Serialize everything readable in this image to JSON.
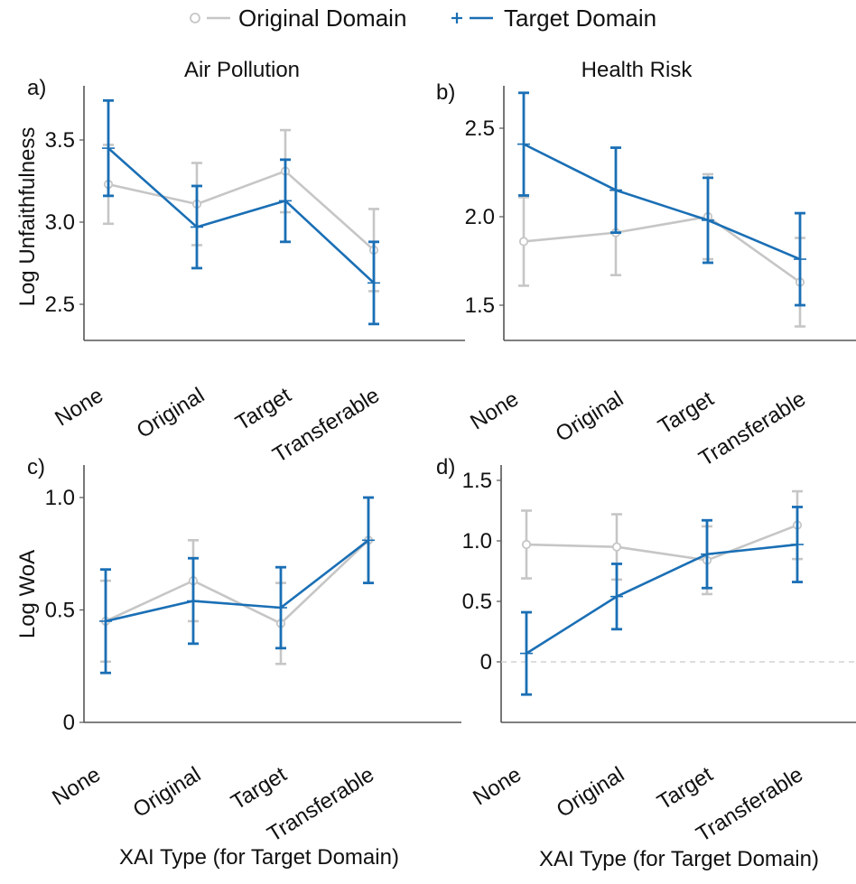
{
  "legend": {
    "original_label": "Original Domain",
    "target_label": "Target Domain",
    "original_color": "#c6c6c6",
    "target_color": "#1a6fb5"
  },
  "chart_data": [
    {
      "type": "line",
      "panel": "a)",
      "title": "Air Pollution",
      "ylabel": "Log Unfaithfulness",
      "xlabel": "",
      "categories": [
        "None",
        "Original",
        "Target",
        "Transferable"
      ],
      "ylim": [
        2.3,
        3.85
      ],
      "yticks": [
        2.5,
        3.0,
        3.5
      ],
      "yticklabels": [
        "2.5",
        "3.0",
        "3.5"
      ],
      "baseline": null,
      "series": [
        {
          "name": "Original Domain",
          "values": [
            3.23,
            3.11,
            3.31,
            2.83
          ],
          "errors": [
            0.24,
            0.25,
            0.25,
            0.25
          ]
        },
        {
          "name": "Target Domain",
          "values": [
            3.45,
            2.97,
            3.13,
            2.63
          ],
          "errors": [
            0.29,
            0.25,
            0.25,
            0.25
          ]
        }
      ]
    },
    {
      "type": "line",
      "panel": "b)",
      "title": "Health Risk",
      "ylabel": "",
      "xlabel": "",
      "categories": [
        "None",
        "Original",
        "Target",
        "Transferable"
      ],
      "ylim": [
        1.3,
        2.78
      ],
      "yticks": [
        1.5,
        2.0,
        2.5
      ],
      "yticklabels": [
        "1.5",
        "2.0",
        "2.5"
      ],
      "baseline": null,
      "series": [
        {
          "name": "Original Domain",
          "values": [
            1.86,
            1.91,
            2.0,
            1.63
          ],
          "errors": [
            0.25,
            0.24,
            0.24,
            0.25
          ]
        },
        {
          "name": "Target Domain",
          "values": [
            2.41,
            2.15,
            1.98,
            1.76
          ],
          "errors": [
            0.29,
            0.24,
            0.24,
            0.26
          ]
        }
      ]
    },
    {
      "type": "line",
      "panel": "c)",
      "title": "",
      "ylabel": "Log WoA",
      "xlabel": "XAI Type (for Target Domain)",
      "categories": [
        "None",
        "Original",
        "Target",
        "Transferable"
      ],
      "ylim": [
        0.0,
        1.15
      ],
      "yticks": [
        0.0,
        0.5,
        1.0
      ],
      "yticklabels": [
        "0",
        "0.5",
        "1.0"
      ],
      "baseline": null,
      "series": [
        {
          "name": "Original Domain",
          "values": [
            0.45,
            0.63,
            0.44,
            0.81
          ],
          "errors": [
            0.18,
            0.18,
            0.18,
            0.19
          ]
        },
        {
          "name": "Target Domain",
          "values": [
            0.45,
            0.54,
            0.51,
            0.81
          ],
          "errors": [
            0.23,
            0.19,
            0.18,
            0.19
          ]
        }
      ]
    },
    {
      "type": "line",
      "panel": "d)",
      "title": "",
      "ylabel": "",
      "xlabel": "XAI Type (for Target Domain)",
      "categories": [
        "None",
        "Original",
        "Target",
        "Transferable"
      ],
      "ylim": [
        -0.42,
        1.65
      ],
      "yticks": [
        0.0,
        0.5,
        1.0,
        1.5
      ],
      "yticklabels": [
        "0",
        "0.5",
        "1.0",
        "1.5"
      ],
      "baseline": 0,
      "series": [
        {
          "name": "Original Domain",
          "values": [
            0.97,
            0.95,
            0.84,
            1.13
          ],
          "errors": [
            0.28,
            0.27,
            0.28,
            0.28
          ]
        },
        {
          "name": "Target Domain",
          "values": [
            0.07,
            0.54,
            0.89,
            0.97
          ],
          "errors": [
            0.34,
            0.27,
            0.28,
            0.31
          ]
        }
      ]
    }
  ]
}
